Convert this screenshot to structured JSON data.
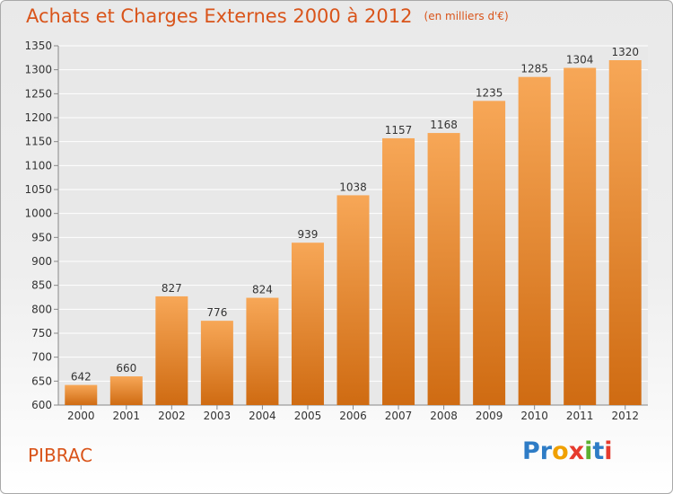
{
  "header": {
    "title": "Achats et Charges Externes 2000 à 2012",
    "subtitle": "(en milliers d'€)"
  },
  "footer": {
    "commune": "PIBRAC",
    "logo_letters": [
      "P",
      "r",
      "o",
      "x",
      "i",
      "t",
      "i"
    ],
    "logo_colors": [
      "#2e7cc6",
      "#2e7cc6",
      "#f0a000",
      "#e63b2e",
      "#5cb030",
      "#2e7cc6",
      "#e63b2e"
    ]
  },
  "colors": {
    "bar_top": "#f7a757",
    "bar_bottom": "#cf6b12",
    "accent": "#d9541a"
  },
  "chart_data": {
    "type": "bar",
    "categories": [
      "2000",
      "2001",
      "2002",
      "2003",
      "2004",
      "2005",
      "2006",
      "2007",
      "2008",
      "2009",
      "2010",
      "2011",
      "2012"
    ],
    "values": [
      642,
      660,
      827,
      776,
      824,
      939,
      1038,
      1157,
      1168,
      1235,
      1285,
      1304,
      1320
    ],
    "ylim": [
      600,
      1350
    ],
    "yticks": [
      600,
      650,
      700,
      750,
      800,
      850,
      900,
      950,
      1000,
      1050,
      1100,
      1150,
      1200,
      1250,
      1300,
      1350
    ],
    "grid": true,
    "xlabel": "",
    "ylabel": ""
  }
}
